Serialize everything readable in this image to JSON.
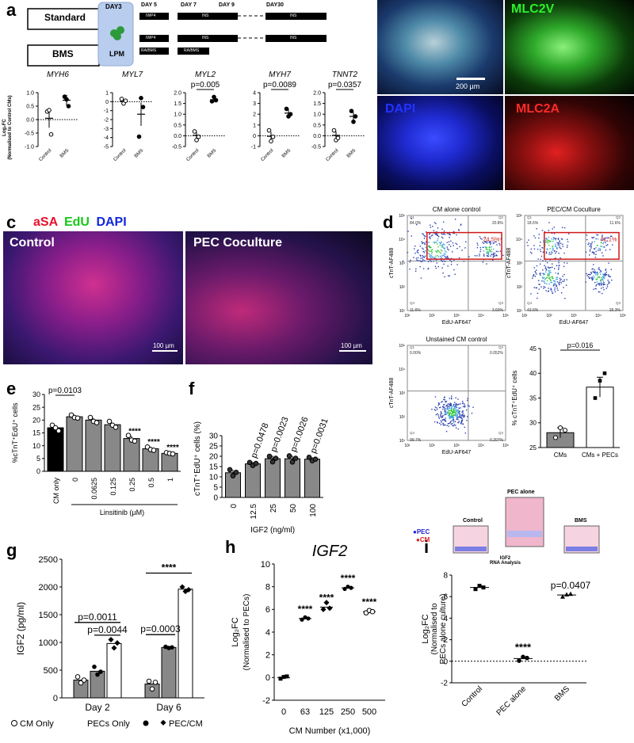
{
  "panel_letters": {
    "a": "a",
    "b": "b",
    "c": "c",
    "d": "d",
    "e": "e",
    "f": "f",
    "g": "g",
    "h": "h",
    "i": "i"
  },
  "panel_a": {
    "scheme": {
      "standard_label": "Standard",
      "bms_label": "BMS",
      "day3": "DAY3",
      "lpm": "LPM",
      "days": [
        "DAY 5",
        "DAY 7",
        "DAY 9",
        "DAY30"
      ],
      "standard_segments": [
        "IWP4",
        "INS",
        "INS"
      ],
      "bms_segments": [
        "IWP4",
        "INS",
        "INS"
      ],
      "bms_ra_segments": [
        "RA/BMS",
        "RA/BMS"
      ]
    },
    "ylabel_line1": "Log₂FC",
    "ylabel_line2": "(Normalised to Control CMs)"
  },
  "panel_b": {
    "labels": {
      "mlc2v": "MLC2V",
      "dapi": "DAPI",
      "mlc2a": "MLC2A"
    },
    "scalebar": "200 µm"
  },
  "panel_c": {
    "stain_asa": "aSA",
    "stain_edu": "EdU",
    "stain_dapi": "DAPI",
    "control": "Control",
    "coculture": "PEC Coculture",
    "scalebar": "100 µm"
  },
  "panel_d": {
    "plots": [
      {
        "title": "CM alone control",
        "q1": "84.0%",
        "q2": "20.8%",
        "q3": "3.60%",
        "q4": "11.6%",
        "gate": "24.5%"
      },
      {
        "title": "PEC/CM Coculture",
        "q1": "18.6%",
        "q2": "11.6%",
        "q3": "26.3%",
        "q4": "43.6%",
        "gate": "41.1%"
      },
      {
        "title": "Unstained CM control",
        "q1": "0.00%",
        "q2": "0.052%",
        "q3": "0.207%",
        "q4": "99.7%",
        "gate": ""
      }
    ],
    "q_names": [
      "Q1",
      "Q2",
      "Q3",
      "Q4"
    ],
    "xaxis": "EdU-AF647",
    "yaxis": "cTnT-AF488",
    "ticks": [
      "10¹",
      "10²",
      "10³",
      "10⁴",
      "10⁵"
    ]
  },
  "chart_data": [
    {
      "id": "a1",
      "type": "scatter",
      "title": "MYH6",
      "categories": [
        "Control",
        "BMS"
      ],
      "ylim": [
        -1.0,
        1.0
      ],
      "yticks": [
        "-1.0",
        "-0.5",
        "0.0",
        "0.5",
        "1.0"
      ],
      "means": [
        0.05,
        0.72
      ],
      "sem": [
        0.35,
        0.2
      ],
      "points": [
        [
          0.3,
          0.35,
          -0.55
        ],
        [
          0.85,
          0.75,
          0.5
        ]
      ]
    },
    {
      "id": "a2",
      "type": "scatter",
      "title": "MYL7",
      "categories": [
        "Control",
        "BMS"
      ],
      "ylim": [
        -5,
        1
      ],
      "yticks": [
        "-5",
        "-4",
        "-3",
        "-2",
        "-1",
        "0",
        "1"
      ],
      "means": [
        0.0,
        -1.4
      ],
      "sem": [
        0.2,
        1.3
      ],
      "points": [
        [
          0.3,
          -0.2,
          0.1
        ],
        [
          -3.9,
          0.4,
          -0.6
        ]
      ]
    },
    {
      "id": "a3",
      "type": "scatter",
      "title": "MYL2",
      "categories": [
        "Control",
        "BMS"
      ],
      "ylim": [
        -0.5,
        2.0
      ],
      "yticks": [
        "-0.5",
        "0.0",
        "0.5",
        "1.0",
        "1.5",
        "2.0"
      ],
      "means": [
        0.02,
        1.67
      ],
      "sem": [
        0.15,
        0.1
      ],
      "points": [
        [
          0.2,
          -0.2,
          -0.05
        ],
        [
          1.6,
          1.8,
          1.65
        ]
      ],
      "sig": "p=0.005"
    },
    {
      "id": "a4",
      "type": "scatter",
      "title": "MYH7",
      "categories": [
        "Control",
        "BMS"
      ],
      "ylim": [
        -1,
        4
      ],
      "yticks": [
        "-1",
        "0",
        "1",
        "2",
        "3",
        "4"
      ],
      "means": [
        -0.05,
        2.1
      ],
      "sem": [
        0.4,
        0.4
      ],
      "points": [
        [
          0.5,
          -0.5,
          -0.1
        ],
        [
          2.5,
          1.8,
          2.0
        ]
      ],
      "sig": "p=0.0089"
    },
    {
      "id": "a5",
      "type": "scatter",
      "title": "TNNT2",
      "categories": [
        "Control",
        "BMS"
      ],
      "ylim": [
        -0.5,
        2.0
      ],
      "yticks": [
        "-0.5",
        "0.0",
        "0.5",
        "1.0",
        "1.5",
        "2.0"
      ],
      "means": [
        0.02,
        0.9
      ],
      "sem": [
        0.18,
        0.2
      ],
      "points": [
        [
          0.25,
          -0.2,
          -0.1
        ],
        [
          1.15,
          0.65,
          0.9
        ]
      ],
      "sig": "p=0.0357"
    },
    {
      "id": "d_bar",
      "type": "bar",
      "categories": [
        "CMs",
        "CMs + PECs"
      ],
      "values": [
        28,
        37.2
      ],
      "sem": [
        1,
        2
      ],
      "points": [
        [
          27,
          29,
          28.5
        ],
        [
          35,
          38.5,
          40
        ]
      ],
      "ylim": [
        25,
        45
      ],
      "yticks": [
        "25",
        "30",
        "35",
        "40",
        "45"
      ],
      "ylabel": "% cTnT⁺EdU⁺ cells",
      "sig": "p=0.016"
    },
    {
      "id": "e",
      "type": "bar",
      "categories": [
        "CM only",
        "0",
        "0.0625",
        "0.125",
        "0.25",
        "0.5",
        "1"
      ],
      "values": [
        17,
        21.3,
        20,
        18.2,
        12.8,
        8.8,
        7
      ],
      "sem": [
        1,
        0.8,
        0.8,
        0.8,
        1,
        0.8,
        0.4
      ],
      "points": [
        [
          18,
          17,
          15.8
        ],
        [
          22,
          21,
          20.8
        ],
        [
          21,
          19.5,
          19
        ],
        [
          19.5,
          18,
          17.2
        ],
        [
          14,
          12.2,
          11.8
        ],
        [
          9.5,
          8.5,
          8.2
        ],
        [
          7.3,
          7,
          6.8
        ]
      ],
      "ylim": [
        0,
        30
      ],
      "yticks": [
        "0",
        "5",
        "10",
        "15",
        "20",
        "25",
        "30"
      ],
      "ylabel": "%cTnT⁺EdU⁺ cells",
      "xlabel": "Linsitinib (µM)",
      "stars": [
        "",
        "",
        "",
        "",
        "****",
        "****",
        "****"
      ],
      "sig": "p=0.0103"
    },
    {
      "id": "f",
      "type": "bar",
      "categories": [
        "0",
        "12.5",
        "25",
        "50",
        "100"
      ],
      "values": [
        12,
        16.3,
        18.8,
        18.8,
        18.6
      ],
      "sem": [
        1.5,
        1,
        1.5,
        1.5,
        1
      ],
      "points": [
        [
          13.5,
          10.5,
          12.2
        ],
        [
          17,
          15.5,
          16.5
        ],
        [
          20,
          17.3,
          19
        ],
        [
          20.2,
          17.2,
          19
        ],
        [
          19.5,
          17.8,
          18.6
        ]
      ],
      "ylim": [
        0,
        30
      ],
      "yticks": [
        "0",
        "5",
        "10",
        "15",
        "20",
        "25",
        "30"
      ],
      "ylabel": "cTnT⁺EdU⁺ cells (%)",
      "xlabel": "IGF2 (ng/ml)",
      "sig": [
        "",
        "p=0.0478",
        "p=0.0023",
        "p=0.0026",
        "p=0.0031"
      ]
    },
    {
      "id": "g",
      "type": "bar",
      "categories": [
        "Day 2",
        "Day 6"
      ],
      "series": [
        {
          "name": "CM Only",
          "values": [
            320,
            250
          ]
        },
        {
          "name": "PECs Only",
          "values": [
            480,
            910
          ]
        },
        {
          "name": "PEC/CM",
          "values": [
            980,
            1960
          ]
        }
      ],
      "points": [
        [
          [
            380,
            270,
            320
          ],
          [
            560,
            420,
            470
          ],
          [
            1050,
            900,
            990
          ]
        ],
        [
          [
            300,
            160,
            280
          ],
          [
            920,
            900,
            910
          ],
          [
            2000,
            1920,
            1950
          ]
        ]
      ],
      "ylim": [
        0,
        2500
      ],
      "yticks": [
        "0",
        "500",
        "1000",
        "1500",
        "2000",
        "2500"
      ],
      "ylabel": "IGF2 (pg/ml)",
      "sig": [
        "p=0.0011",
        "p=0.0044",
        "p=0.0003",
        "****"
      ]
    },
    {
      "id": "h",
      "type": "scatter",
      "title": "IGF2",
      "categories": [
        "0",
        "63",
        "125",
        "250",
        "500"
      ],
      "values": [
        0,
        5.2,
        6.2,
        7.9,
        5.8
      ],
      "points": [
        [
          -0.1,
          0.05,
          0.1
        ],
        [
          5.1,
          5.3,
          5.2
        ],
        [
          6.0,
          6.6,
          6.1
        ],
        [
          7.8,
          8.0,
          7.9
        ],
        [
          5.7,
          5.9,
          5.8
        ]
      ],
      "ylim": [
        -2,
        10
      ],
      "yticks": [
        "-2",
        "0",
        "2",
        "4",
        "6",
        "8",
        "10"
      ],
      "ylabel": "Log₂FC",
      "ylabel2": "(Normalised to PECs)",
      "xlabel": "CM Number  (x1,000)",
      "stars": [
        "",
        "****",
        "****",
        "****",
        "****"
      ]
    },
    {
      "id": "i",
      "type": "scatter",
      "categories": [
        "Control",
        "PEC alone",
        "BMS"
      ],
      "values": [
        6.85,
        0.25,
        6.15
      ],
      "points": [
        [
          6.7,
          7.0,
          6.85
        ],
        [
          0.05,
          0.4,
          0.3
        ],
        [
          6.0,
          6.2,
          6.25
        ]
      ],
      "ylim": [
        -2,
        8
      ],
      "yticks": [
        "-2",
        "0",
        "2",
        "4",
        "6",
        "8"
      ],
      "ylabel": "Log₂FC",
      "ylabel2": "(Normalised to",
      "ylabel3": "PECs  alone culture)",
      "stars": [
        "",
        "****",
        ""
      ],
      "sig": "p=0.0407"
    }
  ],
  "panel_i_scheme": {
    "pec": "●PEC",
    "cm": "●CM",
    "control": "Control",
    "pec_alone": "PEC alone",
    "bms": "BMS",
    "note": "IGF2\nRNA Analysis"
  }
}
